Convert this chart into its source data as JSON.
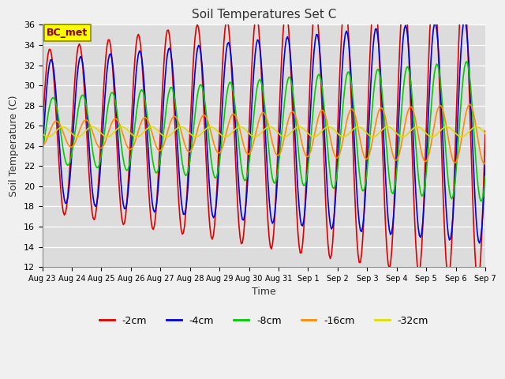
{
  "title": "Soil Temperatures Set C",
  "xlabel": "Time",
  "ylabel": "Soil Temperature (C)",
  "ylim": [
    12,
    36
  ],
  "yticks": [
    12,
    14,
    16,
    18,
    20,
    22,
    24,
    26,
    28,
    30,
    32,
    34,
    36
  ],
  "annotation": "BC_met",
  "annotation_color": "#8B0000",
  "annotation_bg": "#FFFF00",
  "annotation_border": "#8B8B00",
  "series": [
    {
      "label": "-2cm",
      "color": "#DD0000",
      "amplitude": 8.0,
      "mean": 25.5,
      "phase": 0.0,
      "amp_growth": 0.06
    },
    {
      "label": "-4cm",
      "color": "#0000DD",
      "amplitude": 7.0,
      "mean": 25.5,
      "phase": 0.3,
      "amp_growth": 0.04
    },
    {
      "label": "-8cm",
      "color": "#00CC00",
      "amplitude": 3.2,
      "mean": 25.5,
      "phase": 0.7,
      "amp_growth": 0.08
    },
    {
      "label": "-16cm",
      "color": "#FF8C00",
      "amplitude": 1.2,
      "mean": 25.2,
      "phase": 1.4,
      "amp_growth": 0.1
    },
    {
      "label": "-32cm",
      "color": "#DDDD00",
      "amplitude": 0.5,
      "mean": 25.4,
      "phase": 2.8,
      "amp_growth": 0.0
    }
  ],
  "num_days": 16,
  "hours_per_day": 24,
  "xtick_labels": [
    "Aug 23",
    "Aug 24",
    "Aug 25",
    "Aug 26",
    "Aug 27",
    "Aug 28",
    "Aug 29",
    "Aug 30",
    "Aug 31",
    "Sep 1",
    "Sep 2",
    "Sep 3",
    "Sep 4",
    "Sep 5",
    "Sep 6",
    "Sep 7"
  ],
  "linewidth": 1.2,
  "fig_bg": "#F0F0F0",
  "plot_bg": "#DCDCDC",
  "grid_color": "#FFFFFF"
}
